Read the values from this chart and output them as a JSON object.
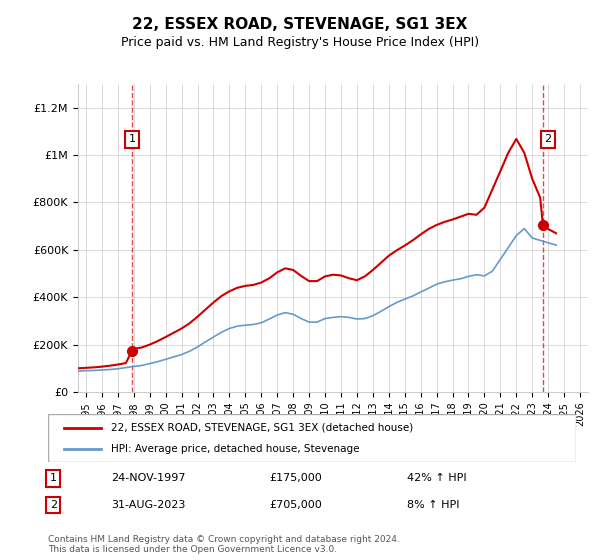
{
  "title": "22, ESSEX ROAD, STEVENAGE, SG1 3EX",
  "subtitle": "Price paid vs. HM Land Registry's House Price Index (HPI)",
  "hpi_label": "HPI: Average price, detached house, Stevenage",
  "property_label": "22, ESSEX ROAD, STEVENAGE, SG1 3EX (detached house)",
  "annotation1": {
    "label": "1",
    "date": "24-NOV-1997",
    "price": 175000,
    "pct": "42% ↑ HPI",
    "x_year": 1997.9
  },
  "annotation2": {
    "label": "2",
    "date": "31-AUG-2023",
    "price": 705000,
    "pct": "8% ↑ HPI",
    "x_year": 2023.67
  },
  "footer": "Contains HM Land Registry data © Crown copyright and database right 2024.\nThis data is licensed under the Open Government Licence v3.0.",
  "property_color": "#cc0000",
  "hpi_color": "#6699cc",
  "ylim": [
    0,
    1300000
  ],
  "xlim_start": 1994.5,
  "xlim_end": 2026.5,
  "yticks": [
    0,
    200000,
    400000,
    600000,
    800000,
    1000000,
    1200000
  ],
  "ytick_labels": [
    "£0",
    "£200K",
    "£400K",
    "£600K",
    "£800K",
    "£1M",
    "£1.2M"
  ],
  "xticks": [
    1995,
    1996,
    1997,
    1998,
    1999,
    2000,
    2001,
    2002,
    2003,
    2004,
    2005,
    2006,
    2007,
    2008,
    2009,
    2010,
    2011,
    2012,
    2013,
    2014,
    2015,
    2016,
    2017,
    2018,
    2019,
    2020,
    2021,
    2022,
    2023,
    2024,
    2025,
    2026
  ],
  "hpi_data": {
    "years": [
      1994.5,
      1995,
      1995.5,
      1996,
      1996.5,
      1997,
      1997.5,
      1998,
      1998.5,
      1999,
      1999.5,
      2000,
      2000.5,
      2001,
      2001.5,
      2002,
      2002.5,
      2003,
      2003.5,
      2004,
      2004.5,
      2005,
      2005.5,
      2006,
      2006.5,
      2007,
      2007.5,
      2008,
      2008.5,
      2009,
      2009.5,
      2010,
      2010.5,
      2011,
      2011.5,
      2012,
      2012.5,
      2013,
      2013.5,
      2014,
      2014.5,
      2015,
      2015.5,
      2016,
      2016.5,
      2017,
      2017.5,
      2018,
      2018.5,
      2019,
      2019.5,
      2020,
      2020.5,
      2021,
      2021.5,
      2022,
      2022.5,
      2023,
      2023.5,
      2024,
      2024.5
    ],
    "values": [
      88000,
      90000,
      91000,
      93000,
      95000,
      98000,
      103000,
      108000,
      112000,
      120000,
      128000,
      138000,
      148000,
      158000,
      172000,
      190000,
      212000,
      232000,
      252000,
      268000,
      278000,
      282000,
      285000,
      292000,
      308000,
      325000,
      335000,
      328000,
      310000,
      295000,
      295000,
      310000,
      315000,
      318000,
      315000,
      308000,
      310000,
      322000,
      340000,
      360000,
      378000,
      392000,
      405000,
      422000,
      438000,
      455000,
      465000,
      472000,
      478000,
      488000,
      495000,
      490000,
      510000,
      560000,
      610000,
      660000,
      690000,
      650000,
      640000,
      630000,
      620000
    ]
  },
  "property_data": {
    "years": [
      1994.5,
      1995,
      1995.5,
      1996,
      1996.5,
      1997,
      1997.5,
      1997.9,
      1998,
      1998.5,
      1999,
      1999.5,
      2000,
      2000.5,
      2001,
      2001.5,
      2002,
      2002.5,
      2003,
      2003.5,
      2004,
      2004.5,
      2005,
      2005.5,
      2006,
      2006.5,
      2007,
      2007.5,
      2008,
      2008.5,
      2009,
      2009.5,
      2010,
      2010.5,
      2011,
      2011.5,
      2012,
      2012.5,
      2013,
      2013.5,
      2014,
      2014.5,
      2015,
      2015.5,
      2016,
      2016.5,
      2017,
      2017.5,
      2018,
      2018.5,
      2019,
      2019.5,
      2020,
      2020.5,
      2021,
      2021.5,
      2022,
      2022.5,
      2023,
      2023.5,
      2023.67,
      2024,
      2024.5
    ],
    "values": [
      100000,
      102000,
      104000,
      107000,
      111000,
      116000,
      122000,
      175000,
      182000,
      188000,
      200000,
      215000,
      232000,
      250000,
      268000,
      290000,
      318000,
      348000,
      378000,
      405000,
      425000,
      440000,
      448000,
      452000,
      462000,
      480000,
      505000,
      522000,
      515000,
      490000,
      468000,
      468000,
      488000,
      495000,
      492000,
      480000,
      472000,
      488000,
      515000,
      545000,
      575000,
      598000,
      618000,
      640000,
      665000,
      688000,
      705000,
      718000,
      728000,
      740000,
      752000,
      748000,
      778000,
      855000,
      932000,
      1010000,
      1068000,
      1010000,
      900000,
      820000,
      705000,
      688000,
      670000
    ]
  }
}
